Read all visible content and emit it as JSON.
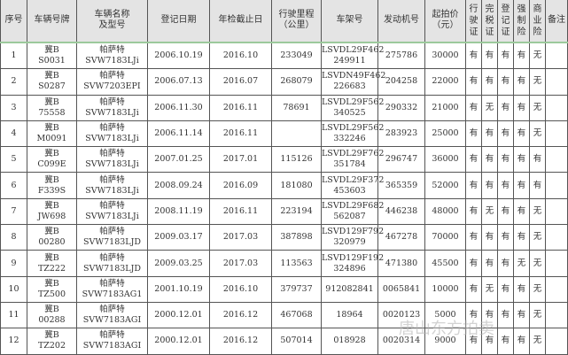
{
  "headers": [
    "序号",
    "车辆号牌",
    "车辆名称\n及型号",
    "登记日期",
    "年检截止日",
    "行驶里程\n（公里）",
    "车架号",
    "发动机号",
    "起拍价\n（元）",
    "行\n驶\n证",
    "完\n税\n证",
    "登\n记\n证",
    "强\n制\n险",
    "商\n业\n险",
    "备注"
  ],
  "rows": [
    [
      "1",
      "冀B\nS0031",
      "帕萨特\nSVW7183LJi",
      "2006.10.19",
      "2016.10",
      "233049",
      "LSVDL29F462\n249911",
      "275786",
      "30000",
      "有",
      "有",
      "有",
      "有",
      "无",
      ""
    ],
    [
      "2",
      "冀B\nS0287",
      "帕萨特\nSVW7203EPI",
      "2006.07.13",
      "2016.07",
      "268079",
      "LSVDN49F462\n226683",
      "204258",
      "22000",
      "有",
      "有",
      "有",
      "有",
      "无",
      ""
    ],
    [
      "3",
      "冀B\n75558",
      "帕萨特\nSVW7183LJi",
      "2006.11.30",
      "2016.11",
      "78691",
      "LSVDL29F562\n340525",
      "290332",
      "21000",
      "有",
      "无",
      "有",
      "有",
      "无",
      ""
    ],
    [
      "4",
      "冀B\nM0091",
      "帕萨特\nSVW7183LJi",
      "2006.11.14",
      "2016.11",
      "",
      "LSVDL29F562\n332246",
      "283923",
      "25000",
      "有",
      "有",
      "有",
      "有",
      "无",
      ""
    ],
    [
      "5",
      "冀B\nC099E",
      "帕萨特\nSVW7183LJi",
      "2007.01.25",
      "2017.01",
      "115126",
      "LSVDL29F762\n351784",
      "296747",
      "36000",
      "有",
      "有",
      "有",
      "有",
      "有",
      ""
    ],
    [
      "6",
      "冀B\nF339S",
      "帕萨特\nSVW7183LJi",
      "2008.09.24",
      "2016.09",
      "181080",
      "LSVDL29F372\n453603",
      "365359",
      "52000",
      "有",
      "有",
      "有",
      "有",
      "有",
      ""
    ],
    [
      "7",
      "冀B\nJW698",
      "帕萨特\nSVW7183LJi",
      "2008.11.19",
      "2016.11",
      "223194",
      "LSVDL29F682\n562087",
      "446238",
      "48000",
      "有",
      "无",
      "有",
      "有",
      "无",
      ""
    ],
    [
      "8",
      "冀B\n00280",
      "帕萨特\nSVW7183LJD",
      "2009.03.17",
      "2017.03",
      "387898",
      "LSVD129F792\n320979",
      "467278",
      "70000",
      "有",
      "有",
      "有",
      "有",
      "无",
      ""
    ],
    [
      "9",
      "冀B\nTZ222",
      "帕萨特\nSVW7183LJD",
      "2009.03.25",
      "2017.03",
      "113563",
      "LSVD129F192\n324896",
      "471380",
      "45500",
      "有",
      "有",
      "有",
      "无",
      "无",
      ""
    ],
    [
      "10",
      "冀B\nTZ500",
      "帕萨特\nSVW7183AG1",
      "2001.10.19",
      "2016.10",
      "379737",
      "912082841",
      "0065841",
      "10000",
      "有",
      "无",
      "有",
      "有",
      "无",
      ""
    ],
    [
      "11",
      "冀B\n00288",
      "帕萨特\nSVW7183AGI",
      "2000.12.01",
      "2016.12",
      "467068",
      "18964",
      "0020123",
      "5000",
      "有",
      "有",
      "有",
      "有",
      "无",
      ""
    ],
    [
      "12",
      "冀B\nTZ202",
      "帕萨特\nSVW7183AGI",
      "2000.12.01",
      "2016.12",
      "507014",
      "018928",
      "0020314",
      "9000",
      "有",
      "有",
      "有",
      "有",
      "无",
      ""
    ]
  ],
  "watermark": "唐山东方拍卖"
}
